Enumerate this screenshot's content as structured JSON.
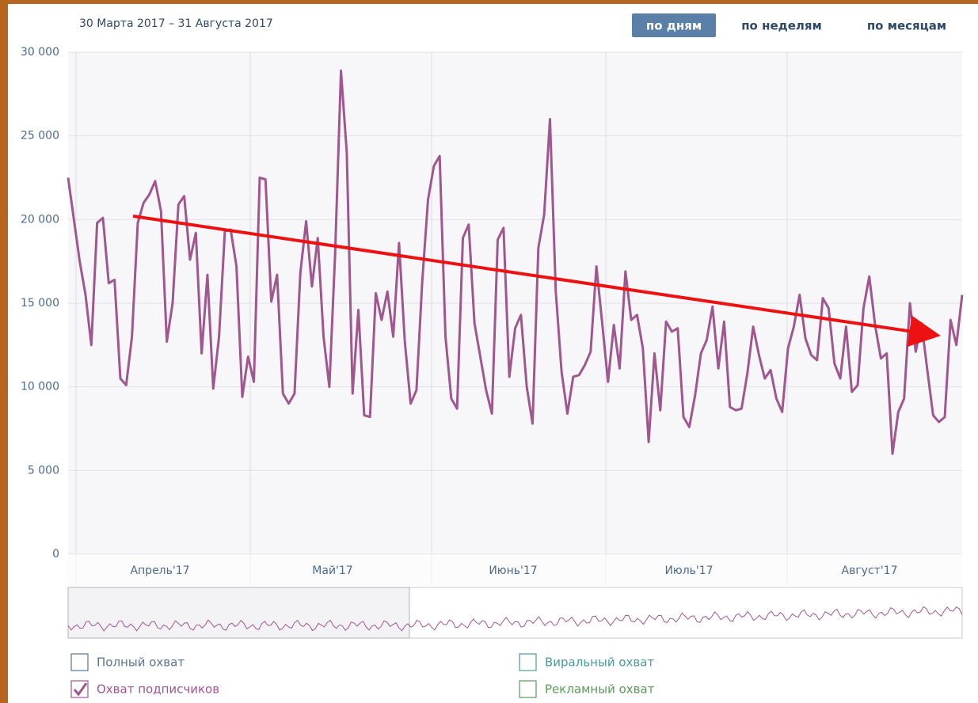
{
  "header": {
    "date_range": "30 Марта 2017 – 31 Августа 2017",
    "periods": [
      {
        "label": "по дням",
        "selected": true
      },
      {
        "label": "по неделям",
        "selected": false
      },
      {
        "label": "по месяцам",
        "selected": false
      }
    ]
  },
  "chart_data": {
    "type": "line",
    "months": [
      "Апрель'17",
      "Май'17",
      "Июнь'17",
      "Июль'17",
      "Август'17"
    ],
    "ylim": [
      0,
      30000
    ],
    "yticks": [
      0,
      {
        "value": 5000,
        "label": "5 000"
      },
      {
        "value": 10000,
        "label": "10 000"
      },
      {
        "value": 15000,
        "label": "15 000"
      },
      {
        "value": 20000,
        "label": "20 000"
      },
      {
        "value": 25000,
        "label": "25 000"
      },
      {
        "value": 30000,
        "label": "30 000"
      }
    ],
    "grid": true,
    "series": [
      {
        "name": "Полный охват",
        "color": "#5b7391",
        "checked": false
      },
      {
        "name": "Охват подписчиков",
        "color": "#a0568f",
        "checked": true,
        "values": [
          22500,
          20000,
          17500,
          15500,
          12500,
          19800,
          20100,
          16200,
          16400,
          10500,
          10100,
          13000,
          19800,
          21000,
          21500,
          22300,
          20500,
          12700,
          15000,
          20900,
          21400,
          17600,
          19200,
          12000,
          16700,
          9900,
          13000,
          19300,
          19400,
          17200,
          9400,
          11800,
          10300,
          22500,
          22400,
          15100,
          16700,
          9600,
          9000,
          9600,
          16800,
          19900,
          16000,
          18900,
          13000,
          10000,
          18000,
          28900,
          24000,
          9600,
          14600,
          8300,
          8200,
          15600,
          14000,
          15700,
          13000,
          18600,
          12700,
          9000,
          9800,
          16300,
          21200,
          23200,
          23800,
          13000,
          9300,
          8700,
          18900,
          19700,
          13800,
          11800,
          9800,
          8400,
          18800,
          19500,
          10600,
          13500,
          14300,
          10000,
          7800,
          18300,
          20300,
          26000,
          15700,
          10900,
          8400,
          10600,
          10700,
          11300,
          12100,
          17200,
          13800,
          10300,
          13700,
          11100,
          16900,
          14000,
          14300,
          12300,
          6700,
          12000,
          8600,
          13900,
          13300,
          13500,
          8200,
          7600,
          9500,
          12000,
          12800,
          14800,
          11100,
          13900,
          8800,
          8600,
          8700,
          10800,
          13600,
          11900,
          10500,
          11000,
          9300,
          8500,
          12300,
          13600,
          15500,
          12900,
          11900,
          11600,
          15300,
          14700,
          11400,
          10500,
          13600,
          9700,
          10100,
          14700,
          16600,
          13700,
          11700,
          12000,
          6000,
          8500,
          9300,
          15000,
          12100,
          13800,
          11000,
          8300,
          7900,
          8200,
          14000,
          12500,
          15500
        ]
      },
      {
        "name": "Виральный охват",
        "color": "#4a9a9a",
        "checked": false
      },
      {
        "name": "Рекламный охват",
        "color": "#5a9a5a",
        "checked": false
      }
    ]
  }
}
